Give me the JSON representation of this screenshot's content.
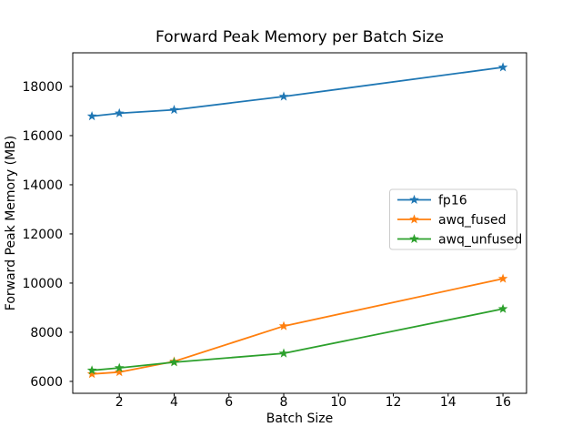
{
  "figure": {
    "background": "#ffffff"
  },
  "colors": {
    "text": "#000000",
    "spine": "#000000",
    "legend_border": "#cccccc",
    "legend_background": "#ffffff",
    "series_blue": "#1f77b4",
    "series_orange": "#ff7f0e",
    "series_green": "#2ca02c"
  },
  "chart_data": {
    "type": "line",
    "title": "Forward Peak Memory per Batch Size",
    "xlabel": "Batch Size",
    "ylabel": "Forward Peak Memory (MB)",
    "x": [
      1,
      2,
      4,
      8,
      16
    ],
    "series": [
      {
        "name": "fp16",
        "color": "#1f77b4",
        "values": [
          16790,
          16910,
          17050,
          17590,
          18780
        ]
      },
      {
        "name": "awq_fused",
        "color": "#ff7f0e",
        "values": [
          6300,
          6380,
          6810,
          8250,
          10180
        ]
      },
      {
        "name": "awq_unfused",
        "color": "#2ca02c",
        "values": [
          6450,
          6550,
          6780,
          7140,
          8950
        ]
      }
    ],
    "marker": "star",
    "xticks": [
      2,
      4,
      6,
      8,
      10,
      12,
      14,
      16
    ],
    "yticks": [
      6000,
      8000,
      10000,
      12000,
      14000,
      16000,
      18000
    ],
    "xlim": [
      0.3,
      16.86
    ],
    "ylim": [
      5515,
      19370
    ],
    "grid": false,
    "legend": {
      "position": "center right",
      "entries": [
        "fp16",
        "awq_fused",
        "awq_unfused"
      ]
    }
  }
}
